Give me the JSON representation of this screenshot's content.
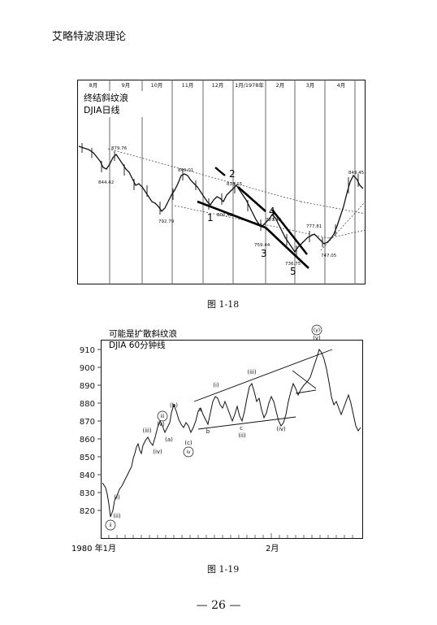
{
  "header": {
    "title": "艾略特波浪理论"
  },
  "figure1": {
    "caption": "图 1-18",
    "title_lines": [
      "终结斜纹浪",
      "DJIA日线"
    ],
    "months": [
      "8月",
      "9月",
      "10月",
      "11月",
      "12月",
      "1月/1978年",
      "2月",
      "3月",
      "4月"
    ],
    "price_labels": [
      "879.76",
      "844.42",
      "849.01",
      "792.79",
      "835.15",
      "800.42",
      "787.42",
      "759.44",
      "736.75",
      "777.81",
      "747.05",
      "849.45"
    ],
    "wave_labels": [
      "1",
      "2",
      "3",
      "4",
      "5"
    ]
  },
  "figure2": {
    "caption": "图 1-19",
    "title_lines": [
      "可能是扩散斜纹浪",
      "DJIA 60分钟线"
    ],
    "y_ticks": [
      "910",
      "900",
      "890",
      "880",
      "870",
      "860",
      "850",
      "840",
      "830",
      "820"
    ],
    "x_labels": [
      "1980 年1月",
      "2月"
    ],
    "wave_labels": [
      "(i)",
      "(ii)",
      "(iii)",
      "(iv)",
      "(v)",
      "(a)",
      "(b)",
      "(c)",
      "a",
      "b",
      "c",
      "(i)",
      "(ii)",
      "(iii)",
      "(iv)",
      "(v)",
      "(y)",
      "iii",
      "iv",
      "ii"
    ]
  },
  "footer": {
    "page_number": "— 26 —"
  }
}
